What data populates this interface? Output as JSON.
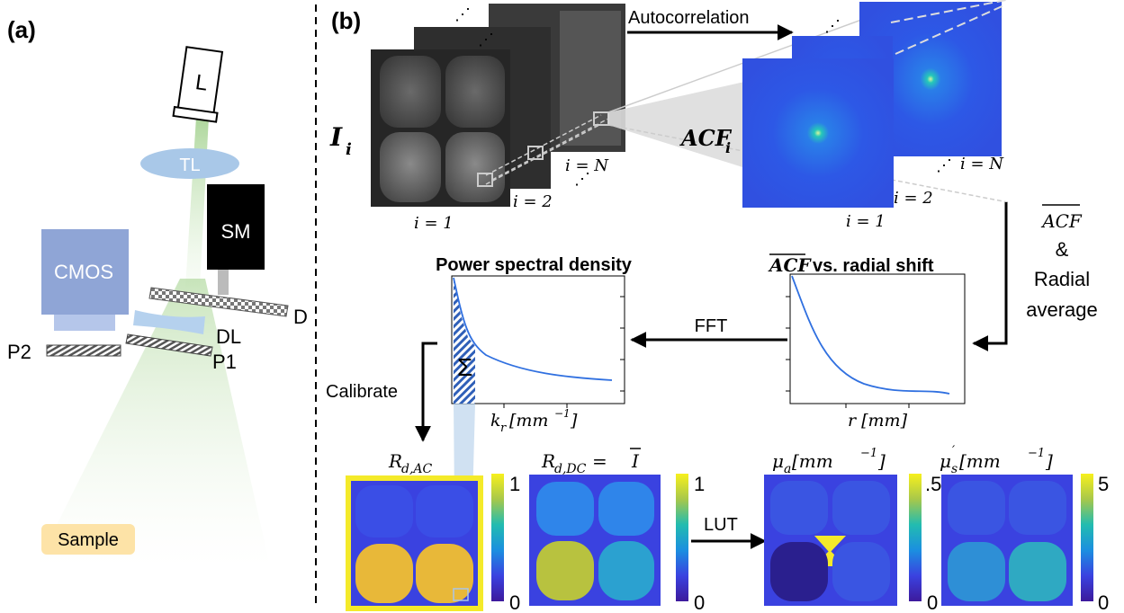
{
  "panel_a": {
    "label": "(a)",
    "components": {
      "laser": "L",
      "tube_lens": "TL",
      "scan_mirror": "SM",
      "camera": "CMOS",
      "dichroic": "D",
      "diverging_lens": "DL",
      "polarizer_1": "P1",
      "polarizer_2": "P2",
      "sample": "Sample"
    }
  },
  "panel_b": {
    "label": "(b)",
    "image_stack": {
      "symbol": "I",
      "subscript": "i",
      "index_1": "i = 1",
      "index_2": "i = 2",
      "index_n": "i = N",
      "ellipsis": "⋰"
    },
    "acf_stack": {
      "symbol": "ACF",
      "subscript": "i",
      "index_1": "i = 1",
      "index_2": "i = 2",
      "index_n": "i = N",
      "ellipsis": "⋰"
    },
    "arrows": {
      "autocorrelation": "Autocorrelation",
      "average_symbol": "ACF",
      "average_amp": "&",
      "radial": "Radial",
      "average": "average",
      "fft": "FFT",
      "calibrate": "Calibrate",
      "lut": "LUT"
    },
    "plots": {
      "psd_title": "Power spectral density",
      "psd_xlabel": "k",
      "psd_xlabel_sub": "r",
      "psd_xlabel_unit": "[mm",
      "psd_xlabel_exp": "−1",
      "psd_xlabel_close": "]",
      "sum_symbol": "Σ",
      "acf_title_sym": "ACF",
      "acf_title_rest": " vs. radial shift",
      "acf_xlabel": "r [mm]"
    },
    "maps": {
      "rac_title": "R",
      "rac_sub": "d,AC",
      "rac_cbar_max": "1",
      "rac_cbar_min": "0",
      "rdc_title": "R",
      "rdc_sub": "d,DC",
      "rdc_eq": " = ",
      "rdc_ibar": "I",
      "rdc_cbar_max": "1",
      "rdc_cbar_min": "0",
      "mua_title": "μ",
      "mua_sub": "a",
      "mua_unit": " [mm",
      "mua_exp": "−1",
      "mua_close": "]",
      "mua_cbar_max": ".5",
      "mua_cbar_min": "0",
      "mus_title": "μ",
      "mus_sub": "s",
      "mus_prime": "′",
      "mus_unit": " [mm",
      "mus_exp": "−1",
      "mus_close": "]",
      "mus_cbar_max": "5",
      "mus_cbar_min": "0"
    }
  },
  "colors": {
    "laser_beam": "#9fcf8a",
    "tube_lens": "#a9c8e8",
    "cmos": "#8fa5d6",
    "scan_mirror": "#000000",
    "sample_bg": "#fde3a7",
    "curve": "#3070e0",
    "hatch": "#2f5fb8",
    "map_blue": "#3a42e0",
    "map_yellow": "#f4ea2a"
  }
}
